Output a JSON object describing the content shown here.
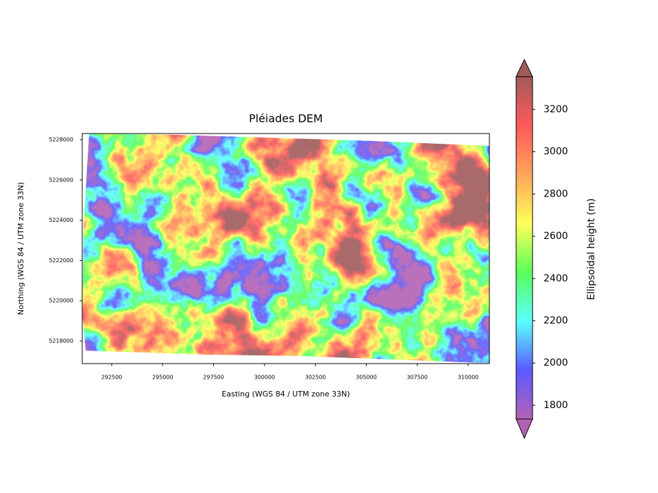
{
  "chart_data": {
    "type": "raster",
    "title": "Pléiades DEM",
    "x_label": "Easting (WGS 84 / UTM zone 33N)",
    "y_label": "Northing (WGS 84 / UTM zone 33N)",
    "xlim": [
      291053,
      311043
    ],
    "xticks": [
      292500,
      295000,
      297500,
      300000,
      302500,
      305000,
      307500,
      310000
    ],
    "ylim": [
      5216878,
      5228306
    ],
    "yticks": [
      5218000,
      5220000,
      5222000,
      5224000,
      5226000,
      5228000
    ],
    "colorbar": {
      "label": "Ellipsoidal height (m)",
      "lim": [
        1735,
        3355
      ],
      "ticks": [
        1800,
        2000,
        2200,
        2400,
        2600,
        2800,
        3000,
        3200
      ],
      "colors": [
        "#b462b4",
        "#5a5aff",
        "#5affff",
        "#5aff5a",
        "#ffff5a",
        "#ffa55a",
        "#ff5a5a",
        "#a05a5a"
      ],
      "extend": "both"
    }
  }
}
